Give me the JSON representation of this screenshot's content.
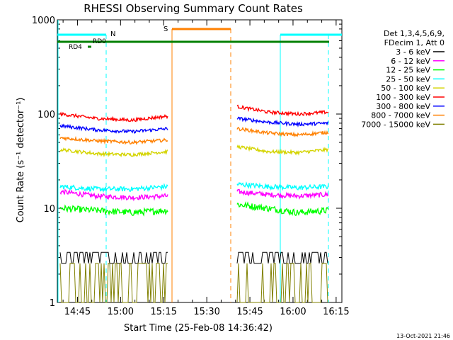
{
  "chart_data": {
    "type": "line",
    "title": "RHESSI Observing Summary Count Rates",
    "xlabel": "Start Time (25-Feb-08 14:36:42)",
    "ylabel": "Count Rate (s⁻¹ detector⁻¹)",
    "x_ticks": [
      "14:45",
      "15:00",
      "15:15",
      "15:30",
      "15:45",
      "16:00",
      "16:15"
    ],
    "y_ticks": [
      "1",
      "10",
      "100",
      "1000"
    ],
    "ylim": [
      1,
      1000
    ],
    "y_scale": "log",
    "xlim": [
      "14:38",
      "16:17"
    ],
    "legend_header": [
      "Det 1,3,4,5,6,9,",
      "FDecim 1, Att 0"
    ],
    "legend_placement": "right",
    "footer_date": "13-Oct-2021 21:46",
    "annotations": {
      "night_label": "N",
      "saa_label": "S",
      "rd0_label": "RD0",
      "rd4_label": "RD4"
    },
    "gaps": [
      [
        "15:17",
        "15:41"
      ]
    ],
    "series": [
      {
        "name": "3 - 6 keV",
        "color": "#000000",
        "values_seg1": [
          3.4,
          3.4
        ],
        "values_seg2": [
          3.4,
          3.4
        ]
      },
      {
        "name": "6 - 12 keV",
        "color": "#ff00ff",
        "values_seg1": [
          15,
          13.5,
          13,
          13.5
        ],
        "values_seg2": [
          15,
          14,
          13.5,
          14
        ]
      },
      {
        "name": "12 - 25 keV",
        "color": "#00ff00",
        "values_seg1": [
          10,
          9.5,
          9,
          9.5
        ],
        "values_seg2": [
          11,
          10,
          9,
          9.5
        ]
      },
      {
        "name": "25 - 50 keV",
        "color": "#00ffff",
        "values_seg1": [
          17,
          16,
          16,
          17
        ],
        "values_seg2": [
          18,
          17,
          16.5,
          17
        ]
      },
      {
        "name": "50 - 100 keV",
        "color": "#d4d400",
        "values_seg1": [
          42,
          38,
          37,
          40
        ],
        "values_seg2": [
          45,
          40,
          39,
          42
        ]
      },
      {
        "name": "100 - 300 keV",
        "color": "#ff0000",
        "values_seg1": [
          100,
          90,
          86,
          95
        ],
        "values_seg2": [
          120,
          105,
          100,
          105
        ]
      },
      {
        "name": "300 - 800 keV",
        "color": "#0000ff",
        "values_seg1": [
          75,
          68,
          65,
          70
        ],
        "values_seg2": [
          90,
          82,
          78,
          80
        ]
      },
      {
        "name": "800 - 7000 keV",
        "color": "#ff8000",
        "values_seg1": [
          56,
          52,
          50,
          53
        ],
        "values_seg2": [
          70,
          63,
          60,
          64
        ]
      },
      {
        "name": "7000 - 15000 keV",
        "color": "#808000",
        "values_seg1": [
          2.6,
          2.6
        ],
        "values_seg2": [
          2.6,
          2.6
        ]
      }
    ]
  }
}
